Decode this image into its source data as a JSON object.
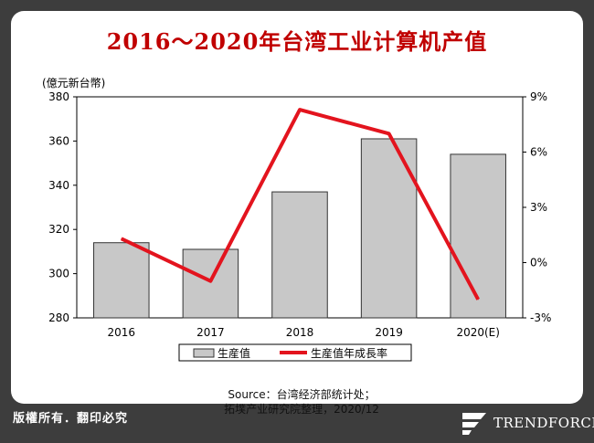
{
  "title": "2016～2020年台湾工业计算机产值",
  "chart_data": {
    "type": "bar",
    "title": "2016～2020年台湾工业计算机产值",
    "y_unit_label": "(億元新台幣)",
    "categories": [
      "2016",
      "2017",
      "2018",
      "2019",
      "2020(E)"
    ],
    "series": [
      {
        "name": "生産值",
        "type": "bar",
        "axis": "left",
        "values": [
          314,
          311,
          337,
          361,
          354
        ],
        "color": "#c8c8c8"
      },
      {
        "name": "生産值年成長率",
        "type": "line",
        "axis": "right",
        "values": [
          1.3,
          -1.0,
          8.3,
          7.0,
          -2.0
        ],
        "color": "#e3141e"
      }
    ],
    "ylim_left": [
      280,
      380
    ],
    "yticks_left": [
      "280",
      "300",
      "320",
      "340",
      "360",
      "380"
    ],
    "ylim_right": [
      -3,
      9
    ],
    "yticks_right": [
      "-3%",
      "0%",
      "3%",
      "6%",
      "9%"
    ],
    "legend": "bottom"
  },
  "source": {
    "line1": "Source：台湾经济部统计处；",
    "line2": "拓墣产业研究院整理，2020/12"
  },
  "footer": {
    "copyright": "版權所有．翻印必究",
    "brand": "TRENDFORCE"
  }
}
